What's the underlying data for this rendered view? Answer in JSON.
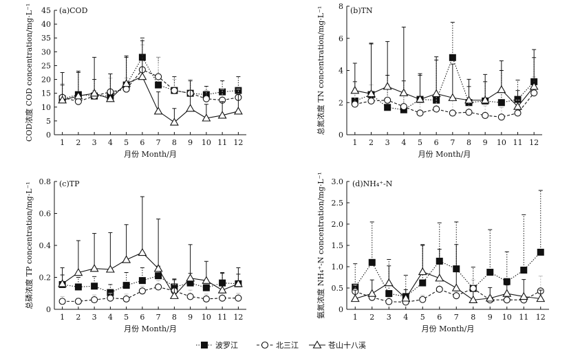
{
  "chart_data": [
    {
      "type": "line",
      "title": "(a)COD",
      "xlabel": "月份 Month/月",
      "ylabel": "COD浓度 COD concentration/mg·L⁻¹",
      "x": [
        1,
        2,
        3,
        4,
        5,
        6,
        7,
        8,
        9,
        10,
        11,
        12
      ],
      "ylim": [
        0,
        45
      ],
      "yticks": [
        0,
        5,
        10,
        15,
        20,
        25,
        30,
        35,
        40,
        45
      ],
      "series": [
        {
          "name": "波罗江",
          "marker": "filled-square",
          "line": "dotted",
          "values": [
            13,
            14.5,
            14,
            14,
            18,
            28,
            18,
            16,
            15,
            14.5,
            15.5,
            16
          ],
          "error": [
            5,
            8,
            6,
            8,
            10,
            7,
            10,
            5,
            5,
            3,
            4,
            5
          ]
        },
        {
          "name": "北三江",
          "marker": "open-circle",
          "line": "dashed",
          "values": [
            13.5,
            12,
            14,
            15.5,
            16.5,
            23.5,
            21,
            16,
            15,
            13,
            12.5,
            13.5
          ],
          "error": [
            5,
            2,
            2,
            5,
            4,
            9,
            7,
            4,
            5,
            3,
            4,
            3
          ]
        },
        {
          "name": "苍山十八溪",
          "marker": "open-triangle",
          "line": "solid",
          "values": [
            12.5,
            14,
            15,
            13,
            18.5,
            21,
            8.5,
            4.5,
            9.5,
            6,
            7,
            8.5
          ],
          "error": [
            10,
            9,
            13,
            9,
            10,
            13,
            7,
            5,
            10,
            5,
            5,
            6
          ]
        }
      ]
    },
    {
      "type": "line",
      "title": "(b)TN",
      "xlabel": "月份 Month/月",
      "ylabel": "总氮浓度 TN concentration/mg·L⁻¹",
      "x": [
        1,
        2,
        3,
        4,
        5,
        6,
        7,
        8,
        9,
        10,
        11,
        12
      ],
      "ylim": [
        0,
        8
      ],
      "yticks": [
        0,
        2,
        4,
        6,
        8
      ],
      "series": [
        {
          "name": "波罗江",
          "marker": "filled-square",
          "line": "dotted",
          "values": [
            2.1,
            2.5,
            1.7,
            1.55,
            2.2,
            2.15,
            4.8,
            2.0,
            2.1,
            2.0,
            2.2,
            3.3
          ],
          "error": [
            1.2,
            3.2,
            2.0,
            1.8,
            1.5,
            2.5,
            2.2,
            1.0,
            1.2,
            2.0,
            1.2,
            1.5
          ]
        },
        {
          "name": "北三江",
          "marker": "open-circle",
          "line": "dashed",
          "values": [
            1.9,
            2.1,
            2.15,
            1.75,
            1.35,
            1.6,
            1.35,
            1.4,
            1.2,
            1.1,
            1.35,
            2.6
          ],
          "error": [
            1.0,
            1.0,
            1.0,
            1.0,
            0.8,
            0.8,
            0.8,
            0.8,
            0.6,
            0.6,
            0.8,
            1.0
          ]
        },
        {
          "name": "苍山十八溪",
          "marker": "open-triangle",
          "line": "solid",
          "values": [
            2.75,
            2.55,
            3.0,
            2.6,
            2.2,
            2.55,
            2.3,
            2.15,
            2.15,
            2.8,
            1.75,
            3.0
          ],
          "error": [
            1.7,
            3.1,
            2.8,
            4.1,
            1.6,
            2.3,
            2.1,
            1.3,
            1.6,
            1.8,
            1.0,
            2.3
          ]
        }
      ]
    },
    {
      "type": "line",
      "title": "(c)TP",
      "xlabel": "月份 Month/月",
      "ylabel": "总磷浓度 TP concentration/mg·L⁻¹",
      "x": [
        1,
        2,
        3,
        4,
        5,
        6,
        7,
        8,
        9,
        10,
        11,
        12
      ],
      "ylim": [
        0,
        0.8
      ],
      "yticks": [
        0,
        0.2,
        0.4,
        0.6,
        0.8
      ],
      "series": [
        {
          "name": "波罗江",
          "marker": "filled-square",
          "line": "dotted",
          "values": [
            0.155,
            0.14,
            0.145,
            0.105,
            0.15,
            0.18,
            0.21,
            0.14,
            0.165,
            0.135,
            0.165,
            0.16
          ],
          "error": [
            0.06,
            0.06,
            0.06,
            0.05,
            0.08,
            0.08,
            0.06,
            0.05,
            0.06,
            0.05,
            0.06,
            0.06
          ]
        },
        {
          "name": "北三江",
          "marker": "open-circle",
          "line": "dashed",
          "values": [
            0.05,
            0.05,
            0.06,
            0.07,
            0.065,
            0.115,
            0.14,
            0.115,
            0.08,
            0.065,
            0.07,
            0.07
          ],
          "error": [
            0.03,
            0.02,
            0.03,
            0.03,
            0.03,
            0.03,
            0.04,
            0.04,
            0.04,
            0.03,
            0.03,
            0.03
          ]
        },
        {
          "name": "苍山十八溪",
          "marker": "open-triangle",
          "line": "solid",
          "values": [
            0.16,
            0.23,
            0.255,
            0.25,
            0.31,
            0.355,
            0.255,
            0.085,
            0.195,
            0.18,
            0.12,
            0.16
          ],
          "error": [
            0.1,
            0.2,
            0.22,
            0.23,
            0.22,
            0.35,
            0.31,
            0.1,
            0.21,
            0.12,
            0.11,
            0.1
          ]
        }
      ]
    },
    {
      "type": "line",
      "title": "(d)NH₄⁺-N",
      "xlabel": "月份 Month/月",
      "ylabel": "氨氮浓度 NH₄⁺-N concentration/mg·L⁻¹",
      "x": [
        1,
        2,
        3,
        4,
        5,
        6,
        7,
        8,
        9,
        10,
        11,
        12
      ],
      "ylim": [
        0,
        3.0
      ],
      "yticks": [
        0,
        0.5,
        1.0,
        1.5,
        2.0,
        2.5,
        3.0
      ],
      "ytick_labels": [
        "0",
        "0.5",
        "1.0",
        "1.5",
        "2.0",
        "2.5",
        "3.0"
      ],
      "series": [
        {
          "name": "波罗江",
          "marker": "filled-square",
          "line": "dotted",
          "values": [
            0.52,
            1.1,
            0.37,
            0.3,
            0.62,
            1.13,
            0.95,
            0.49,
            0.87,
            0.65,
            0.92,
            1.34
          ],
          "error": [
            0.55,
            0.95,
            0.8,
            0.5,
            0.9,
            0.9,
            1.1,
            0.5,
            1.0,
            0.7,
            1.3,
            1.45
          ]
        },
        {
          "name": "北三江",
          "marker": "open-circle",
          "line": "dashed",
          "values": [
            0.42,
            0.28,
            0.18,
            0.17,
            0.23,
            0.47,
            0.32,
            0.49,
            0.22,
            0.22,
            0.22,
            0.43
          ],
          "error": [
            0.15,
            0.1,
            0.1,
            0.1,
            0.1,
            0.2,
            0.1,
            0.2,
            0.1,
            0.1,
            0.1,
            0.35
          ]
        },
        {
          "name": "苍山十八溪",
          "marker": "open-triangle",
          "line": "solid",
          "values": [
            0.25,
            0.37,
            0.62,
            0.26,
            0.88,
            0.73,
            0.5,
            0.22,
            0.26,
            0.37,
            0.3,
            0.25
          ],
          "error": [
            0.2,
            0.32,
            0.4,
            0.2,
            0.62,
            0.68,
            1.02,
            0.2,
            0.25,
            0.2,
            0.4,
            0.2
          ]
        }
      ]
    }
  ],
  "legend": {
    "position": "bottom",
    "items": [
      {
        "label": "波罗江",
        "marker": "filled-square",
        "line": "dotted"
      },
      {
        "label": "北三江",
        "marker": "open-circle",
        "line": "dashed"
      },
      {
        "label": "苍山十八溪",
        "marker": "open-triangle",
        "line": "solid"
      }
    ]
  },
  "colors": {
    "ink": "#111111",
    "errorbar_light": "#bbbbbb"
  }
}
